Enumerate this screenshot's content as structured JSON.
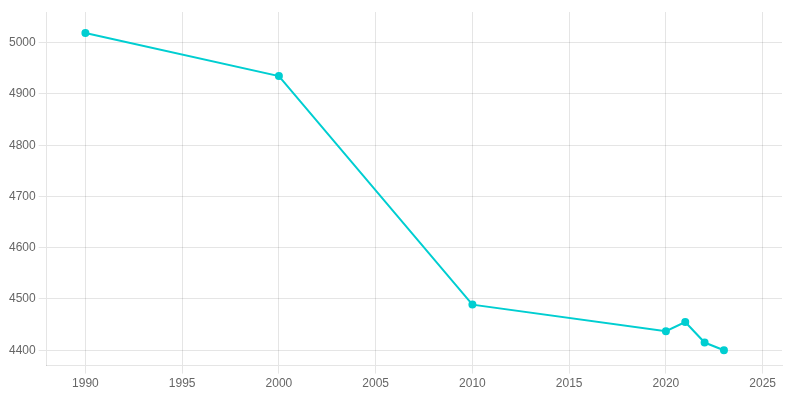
{
  "chart_data": {
    "type": "line",
    "x": [
      1990,
      2000,
      2010,
      2020,
      2021,
      2022,
      2023
    ],
    "values": [
      5019,
      4935,
      4489,
      4437,
      4455,
      4415,
      4400
    ],
    "color": "#00CED1",
    "marker": "circle",
    "xlim": [
      1988,
      2026
    ],
    "ylim": [
      4370,
      5060
    ],
    "xticks": [
      1990,
      1995,
      2000,
      2005,
      2010,
      2015,
      2020,
      2025
    ],
    "yticks": [
      4400,
      4500,
      4600,
      4700,
      4800,
      4900,
      5000
    ],
    "grid": true
  }
}
